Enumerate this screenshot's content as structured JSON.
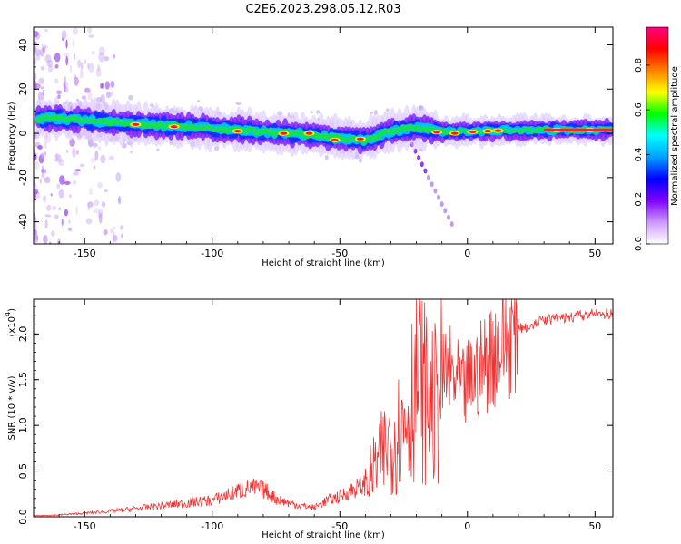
{
  "chart_data": [
    {
      "type": "heatmap",
      "title": "C2E6.2023.298.05.12.R03",
      "xlabel": "Height of straight line (km)",
      "ylabel": "Frequency (Hz)",
      "xlim": [
        -170,
        57
      ],
      "ylim": [
        -50,
        48
      ],
      "x_ticks": [
        -150,
        -100,
        -50,
        0,
        50
      ],
      "x_tick_labels": [
        "-150",
        "-100",
        "-50",
        "0",
        "50"
      ],
      "y_ticks": [
        -40,
        -20,
        0,
        20,
        40
      ],
      "y_tick_labels": [
        "-40",
        "-20",
        "0",
        "20",
        "40"
      ],
      "ridge": {
        "x": [
          -170,
          -150,
          -130,
          -110,
          -90,
          -70,
          -50,
          -40,
          -30,
          -20,
          -12,
          0,
          20,
          57
        ],
        "frequency_hz": [
          7,
          6,
          4,
          3,
          1.5,
          0,
          -2,
          -3,
          1,
          3,
          1,
          1,
          1.5,
          1.5
        ]
      },
      "colorbar": {
        "label": "Normalized spectral amplitude",
        "range": [
          0,
          0.97
        ],
        "ticks": [
          0.0,
          0.2,
          0.4,
          0.6,
          0.8
        ],
        "tick_labels": [
          "0.0",
          "0.2",
          "0.4",
          "0.6",
          "0.8"
        ],
        "colors": [
          "#ffffff",
          "#cc99ff",
          "#8000ff",
          "#0000ff",
          "#00a0ff",
          "#00ffff",
          "#00ff00",
          "#ffff00",
          "#ff8000",
          "#ff0000",
          "#ff0080"
        ]
      }
    },
    {
      "type": "line",
      "xlabel": "Height of straight line (km)",
      "ylabel": "SNR (10 * v/v)",
      "y_multiplier": "(x10",
      "y_multiplier_exp": "4",
      "y_multiplier_close": ")",
      "xlim": [
        -170,
        57
      ],
      "ylim": [
        0,
        2.38
      ],
      "x_ticks": [
        -150,
        -100,
        -50,
        0,
        50
      ],
      "x_tick_labels": [
        "-150",
        "-100",
        "-50",
        "0",
        "50"
      ],
      "y_ticks": [
        0,
        0.5,
        1.0,
        1.5,
        2.0
      ],
      "y_tick_labels": [
        "0.0",
        "0.5",
        "1.0",
        "1.5",
        "2.0"
      ],
      "line_color": "#ee3333",
      "series": [
        {
          "x": [
            -170,
            -160,
            -150,
            -140,
            -130,
            -120,
            -110,
            -100,
            -90,
            -85,
            -80,
            -75,
            -70,
            -65,
            -60,
            -55,
            -50,
            -45,
            -40,
            -35,
            -30,
            -25,
            -22,
            -20,
            -18,
            -15,
            -12,
            -10,
            -8,
            -5,
            -2,
            0,
            5,
            10,
            15,
            20,
            25,
            30,
            35,
            40,
            45,
            50,
            57
          ],
          "y": [
            0.01,
            0.02,
            0.04,
            0.06,
            0.09,
            0.12,
            0.15,
            0.18,
            0.28,
            0.32,
            0.3,
            0.2,
            0.15,
            0.12,
            0.1,
            0.18,
            0.22,
            0.3,
            0.35,
            0.6,
            0.85,
            1.0,
            1.35,
            1.5,
            1.45,
            1.25,
            1.2,
            1.45,
            1.6,
            1.5,
            1.35,
            1.45,
            1.6,
            1.8,
            1.95,
            2.05,
            2.1,
            2.15,
            2.17,
            2.18,
            2.2,
            2.22,
            2.22
          ]
        }
      ]
    }
  ]
}
